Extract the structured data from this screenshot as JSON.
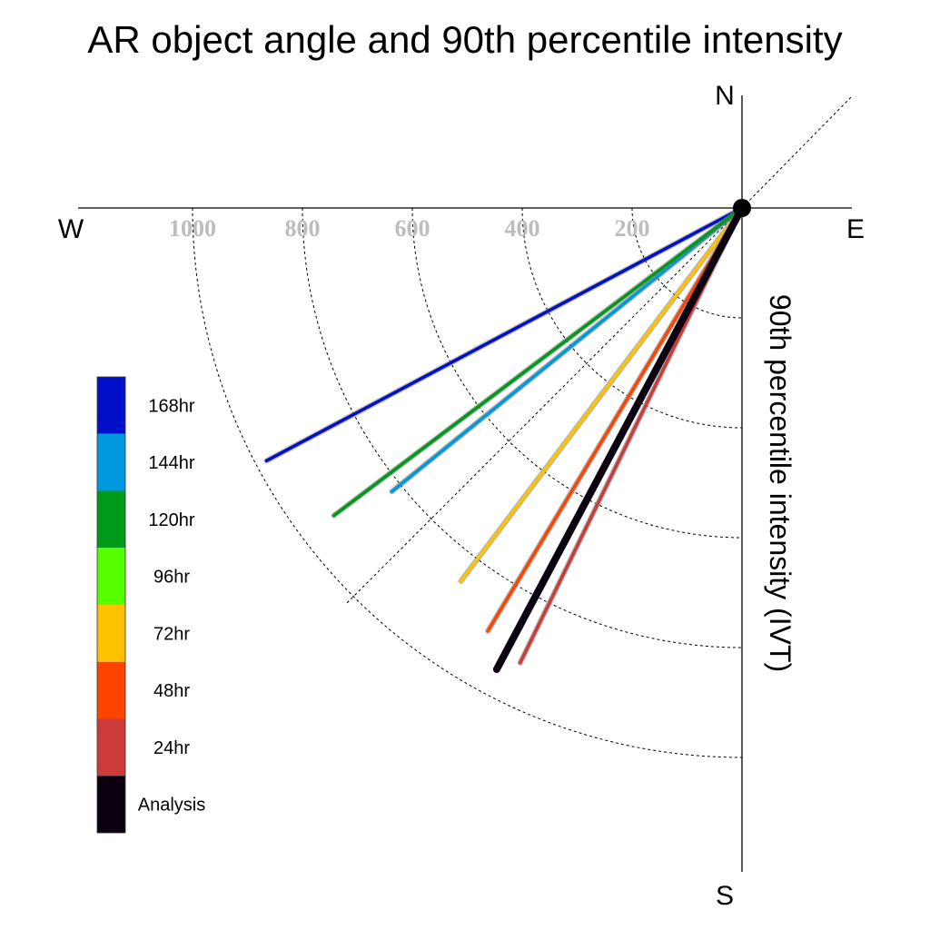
{
  "chart_data": {
    "type": "polar-vector",
    "title": "AR object angle and 90th percentile intensity",
    "ylabel": "90th percentile intensity (IVT)",
    "compass": {
      "north": "N",
      "south": "S",
      "east": "E",
      "west": "W"
    },
    "radial_ticks": [
      "200",
      "400",
      "600",
      "800",
      "1000"
    ],
    "radial_tick_values": [
      200,
      400,
      600,
      800,
      1000
    ],
    "radial_max": 1200,
    "series": [
      {
        "name": "168hr",
        "color": "#0010c8",
        "angle_deg_from_north": 242,
        "intensity": 980
      },
      {
        "name": "144hr",
        "color": "#0099dd",
        "angle_deg_from_north": 231,
        "intensity": 820
      },
      {
        "name": "120hr",
        "color": "#009a1a",
        "angle_deg_from_north": 233,
        "intensity": 930
      },
      {
        "name": "96hr",
        "color": "#55ff00",
        "angle_deg_from_north": 0,
        "intensity": 0
      },
      {
        "name": "72hr",
        "color": "#ffc200",
        "angle_deg_from_north": 217,
        "intensity": 850
      },
      {
        "name": "48hr",
        "color": "#ff4400",
        "angle_deg_from_north": 211,
        "intensity": 898
      },
      {
        "name": "24hr",
        "color": "#cc3a3a",
        "angle_deg_from_north": 206,
        "intensity": 921
      },
      {
        "name": "Analysis",
        "color": "#0a0010",
        "angle_deg_from_north": 208,
        "intensity": 951
      }
    ]
  }
}
